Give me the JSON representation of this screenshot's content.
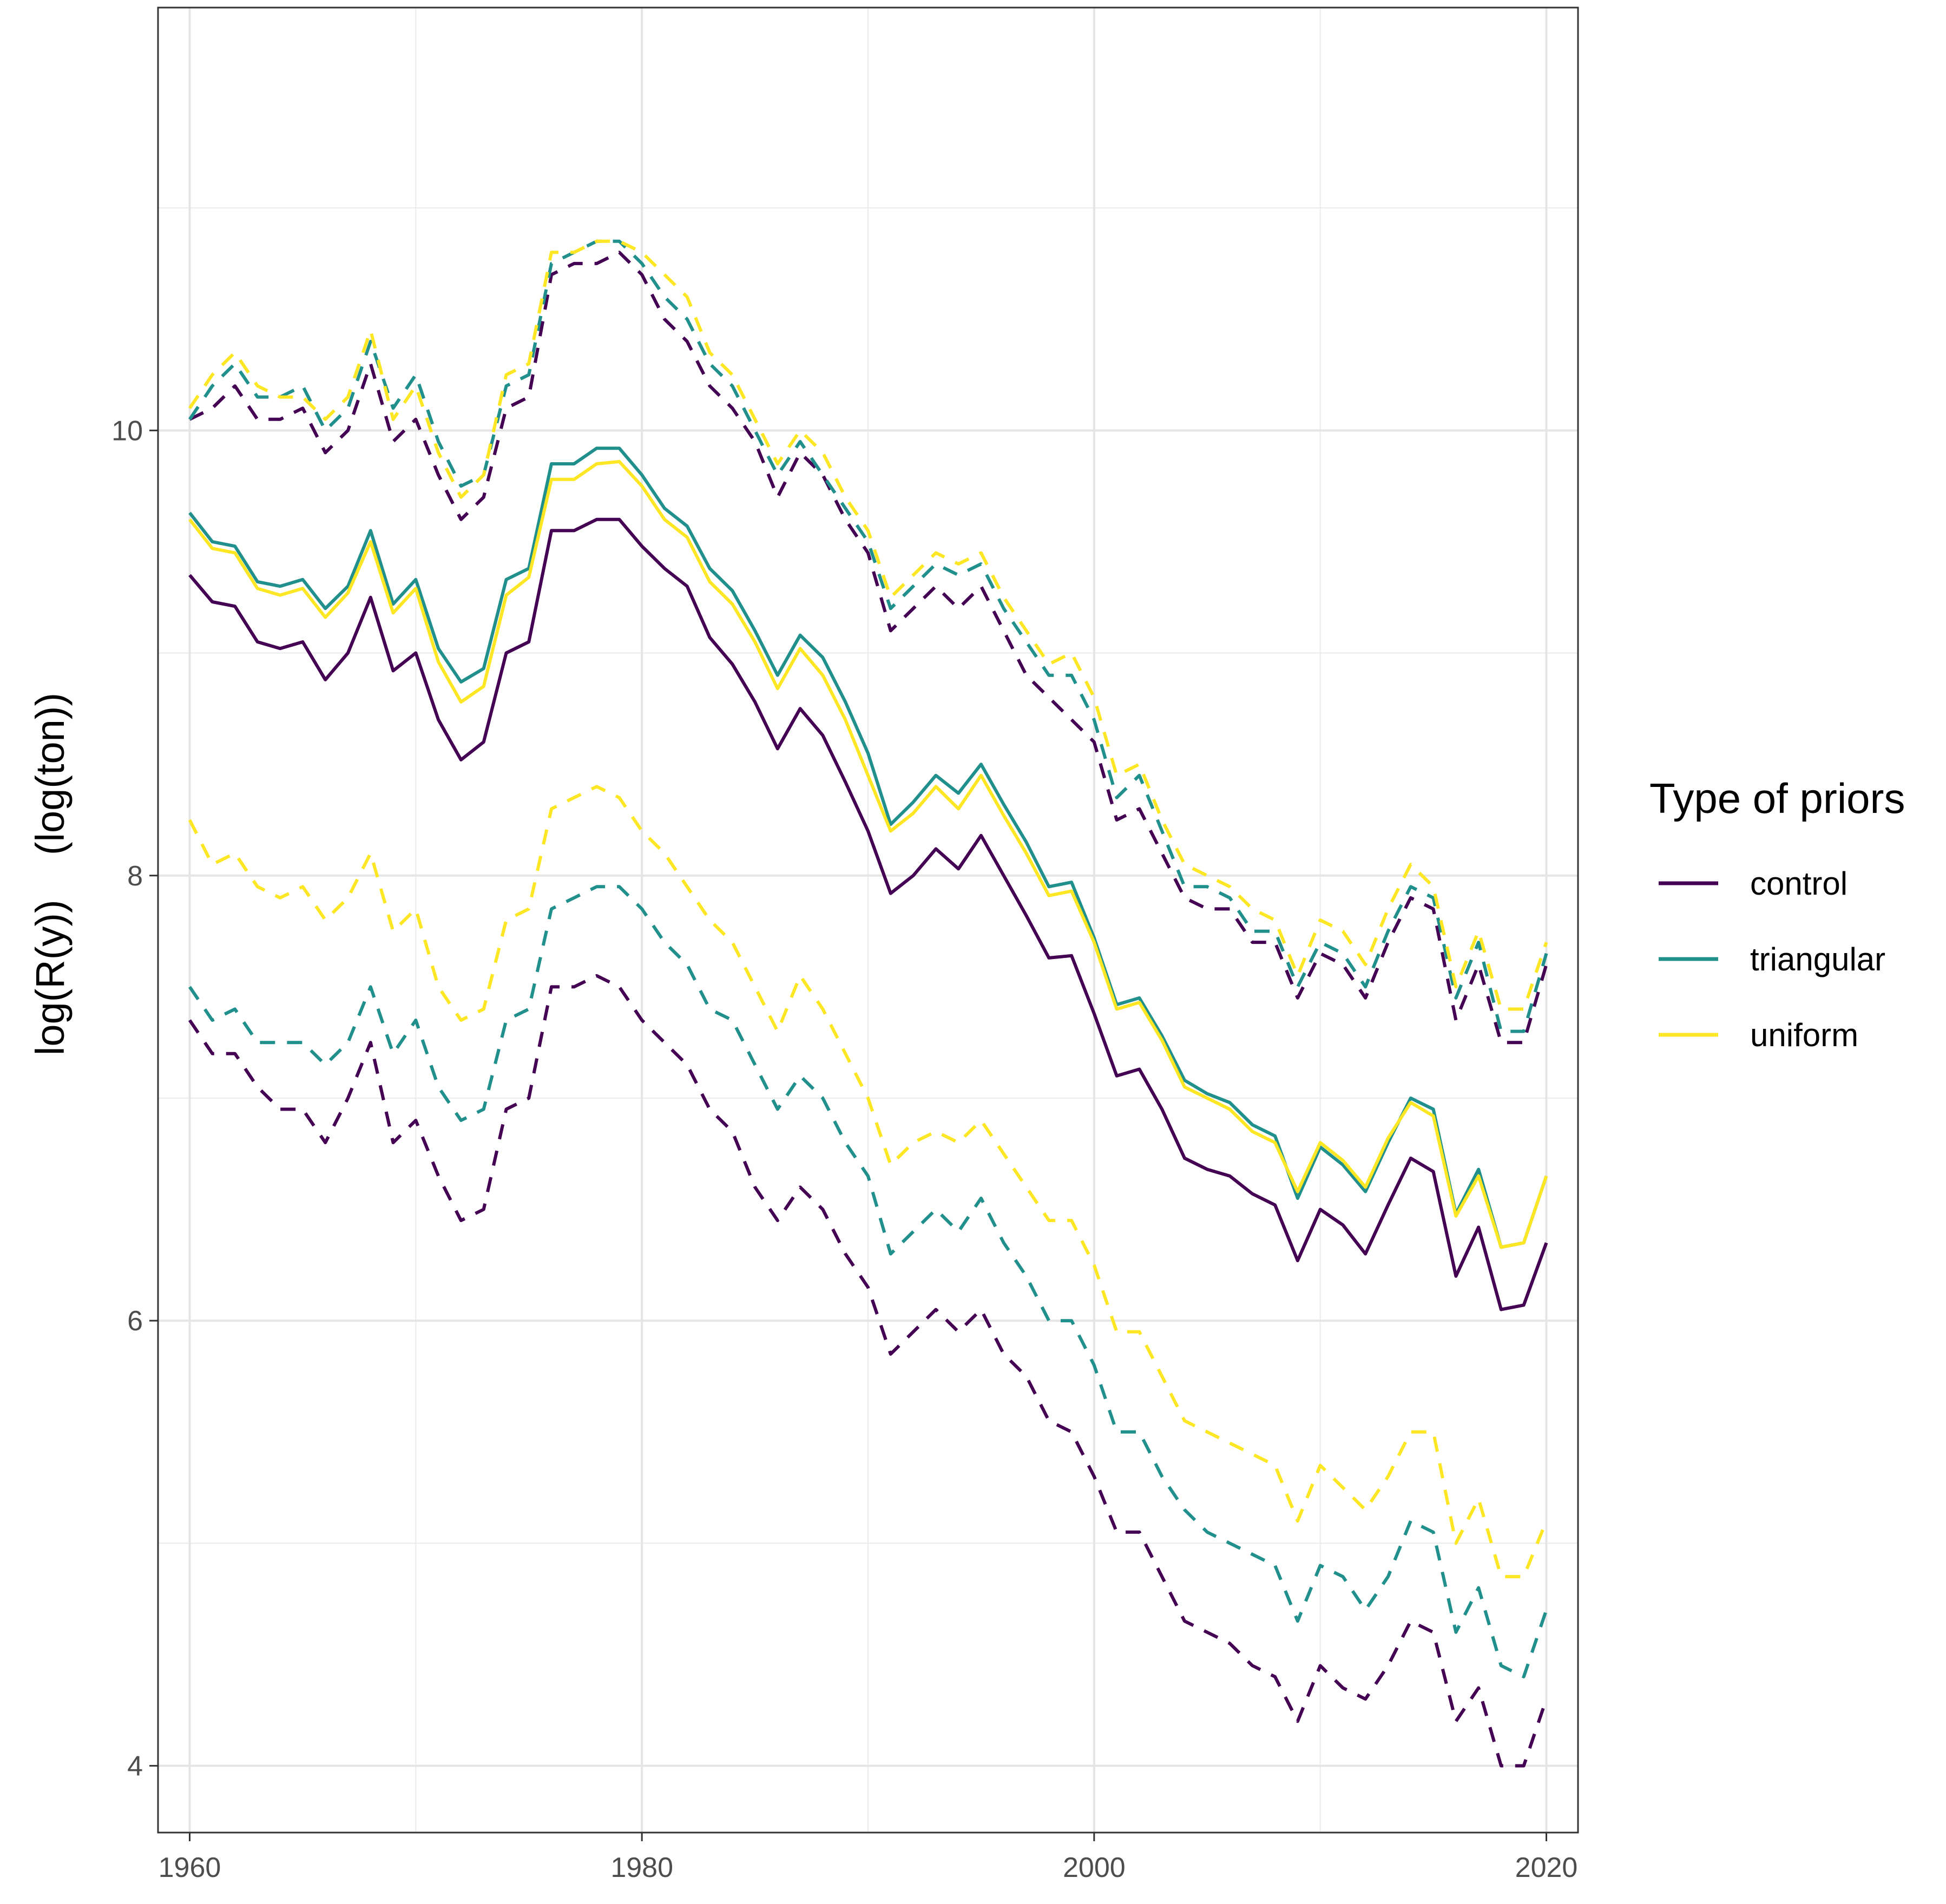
{
  "chart_data": {
    "type": "line",
    "title": "",
    "xlabel": "",
    "ylabel": "log(R(y))    (log(ton))",
    "xlim": [
      1958.6,
      2021.4
    ],
    "ylim": [
      3.7,
      11.9
    ],
    "xticks": [
      1960,
      1980,
      2000,
      2020
    ],
    "xtick_labels": [
      "1960",
      "1980",
      "2000",
      "2020"
    ],
    "yticks": [
      4,
      6,
      8,
      10
    ],
    "ytick_labels": [
      "4",
      "6",
      "8",
      "10"
    ],
    "grid": true,
    "legend": {
      "title": "Type of priors",
      "position": "right",
      "entries": [
        "control",
        "triangular",
        "uniform"
      ]
    },
    "colors": {
      "control": "#440154",
      "triangular": "#21908C",
      "uniform": "#FDE725"
    },
    "x": [
      1960,
      1961,
      1962,
      1963,
      1964,
      1965,
      1966,
      1967,
      1968,
      1969,
      1970,
      1971,
      1972,
      1973,
      1974,
      1975,
      1976,
      1977,
      1978,
      1979,
      1980,
      1981,
      1982,
      1983,
      1984,
      1985,
      1986,
      1987,
      1988,
      1989,
      1990,
      1991,
      1992,
      1993,
      1994,
      1995,
      1996,
      1997,
      1998,
      1999,
      2000,
      2001,
      2002,
      2003,
      2004,
      2005,
      2006,
      2007,
      2008,
      2009,
      2010,
      2011,
      2012,
      2013,
      2014,
      2015,
      2016,
      2017,
      2018,
      2019,
      2020
    ],
    "series": [
      {
        "name": "control",
        "style": "solid",
        "values": [
          9.35,
          9.23,
          9.21,
          9.05,
          9.02,
          9.05,
          8.88,
          9.0,
          9.25,
          8.92,
          9.0,
          8.7,
          8.52,
          8.6,
          9.0,
          9.05,
          9.55,
          9.55,
          9.6,
          9.6,
          9.48,
          9.38,
          9.3,
          9.07,
          8.95,
          8.78,
          8.57,
          8.75,
          8.63,
          8.42,
          8.2,
          7.92,
          8.0,
          8.12,
          8.03,
          8.18,
          8.0,
          7.82,
          7.63,
          7.64,
          7.38,
          7.1,
          7.13,
          6.95,
          6.73,
          6.68,
          6.65,
          6.57,
          6.52,
          6.27,
          6.5,
          6.43,
          6.3,
          6.52,
          6.73,
          6.67,
          6.2,
          6.42,
          6.05,
          6.07,
          6.35
        ]
      },
      {
        "name": "triangular",
        "style": "solid",
        "values": [
          9.63,
          9.5,
          9.48,
          9.32,
          9.3,
          9.33,
          9.2,
          9.3,
          9.55,
          9.22,
          9.33,
          9.02,
          8.87,
          8.93,
          9.33,
          9.38,
          9.85,
          9.85,
          9.92,
          9.92,
          9.8,
          9.65,
          9.57,
          9.38,
          9.28,
          9.1,
          8.9,
          9.08,
          8.98,
          8.78,
          8.55,
          8.23,
          8.33,
          8.45,
          8.37,
          8.5,
          8.32,
          8.15,
          7.95,
          7.97,
          7.72,
          7.42,
          7.45,
          7.28,
          7.08,
          7.02,
          6.98,
          6.88,
          6.83,
          6.55,
          6.78,
          6.7,
          6.58,
          6.8,
          7.0,
          6.95,
          6.48,
          6.68,
          6.33,
          6.35,
          6.65
        ]
      },
      {
        "name": "uniform",
        "style": "solid",
        "values": [
          9.6,
          9.47,
          9.45,
          9.29,
          9.26,
          9.29,
          9.16,
          9.27,
          9.5,
          9.18,
          9.29,
          8.96,
          8.78,
          8.85,
          9.26,
          9.34,
          9.78,
          9.78,
          9.85,
          9.86,
          9.75,
          9.6,
          9.52,
          9.32,
          9.22,
          9.05,
          8.84,
          9.02,
          8.9,
          8.7,
          8.45,
          8.2,
          8.28,
          8.4,
          8.3,
          8.45,
          8.27,
          8.1,
          7.91,
          7.93,
          7.7,
          7.4,
          7.43,
          7.26,
          7.05,
          7.0,
          6.95,
          6.85,
          6.8,
          6.58,
          6.8,
          6.72,
          6.6,
          6.82,
          6.98,
          6.92,
          6.47,
          6.65,
          6.33,
          6.35,
          6.65
        ]
      },
      {
        "name": "control",
        "style": "dashed",
        "values": [
          10.05,
          10.1,
          10.2,
          10.05,
          10.05,
          10.1,
          9.9,
          10.0,
          10.3,
          9.95,
          10.05,
          9.8,
          9.6,
          9.7,
          10.1,
          10.15,
          10.7,
          10.75,
          10.75,
          10.8,
          10.7,
          10.5,
          10.4,
          10.2,
          10.1,
          9.95,
          9.7,
          9.9,
          9.8,
          9.6,
          9.45,
          9.1,
          9.2,
          9.3,
          9.2,
          9.3,
          9.1,
          8.9,
          8.8,
          8.7,
          8.6,
          8.25,
          8.3,
          8.1,
          7.9,
          7.85,
          7.85,
          7.7,
          7.7,
          7.45,
          7.65,
          7.6,
          7.45,
          7.7,
          7.9,
          7.85,
          7.35,
          7.6,
          7.25,
          7.25,
          7.6
        ]
      },
      {
        "name": "triangular",
        "style": "dashed",
        "values": [
          10.05,
          10.2,
          10.3,
          10.15,
          10.15,
          10.2,
          10.0,
          10.1,
          10.4,
          10.1,
          10.25,
          9.95,
          9.75,
          9.8,
          10.2,
          10.25,
          10.75,
          10.8,
          10.85,
          10.85,
          10.75,
          10.6,
          10.5,
          10.3,
          10.2,
          10.0,
          9.8,
          9.95,
          9.8,
          9.65,
          9.5,
          9.2,
          9.3,
          9.4,
          9.35,
          9.4,
          9.2,
          9.05,
          8.9,
          8.9,
          8.7,
          8.35,
          8.45,
          8.2,
          7.95,
          7.95,
          7.9,
          7.75,
          7.75,
          7.5,
          7.7,
          7.65,
          7.5,
          7.75,
          7.95,
          7.9,
          7.45,
          7.7,
          7.3,
          7.3,
          7.65
        ]
      },
      {
        "name": "uniform",
        "style": "dashed",
        "values": [
          10.1,
          10.25,
          10.35,
          10.2,
          10.15,
          10.15,
          10.05,
          10.15,
          10.45,
          10.05,
          10.2,
          9.9,
          9.7,
          9.8,
          10.25,
          10.3,
          10.8,
          10.8,
          10.85,
          10.85,
          10.8,
          10.7,
          10.6,
          10.35,
          10.25,
          10.05,
          9.85,
          10.0,
          9.9,
          9.7,
          9.55,
          9.25,
          9.35,
          9.45,
          9.4,
          9.45,
          9.25,
          9.1,
          8.95,
          9.0,
          8.8,
          8.45,
          8.5,
          8.25,
          8.05,
          8.0,
          7.95,
          7.85,
          7.8,
          7.55,
          7.8,
          7.75,
          7.6,
          7.85,
          8.05,
          7.95,
          7.5,
          7.75,
          7.4,
          7.4,
          7.7
        ]
      },
      {
        "name": "control",
        "style": "dashed",
        "values": [
          7.35,
          7.2,
          7.2,
          7.05,
          6.95,
          6.95,
          6.8,
          7.0,
          7.25,
          6.8,
          6.9,
          6.65,
          6.45,
          6.5,
          6.95,
          7.0,
          7.5,
          7.5,
          7.55,
          7.5,
          7.35,
          7.25,
          7.15,
          6.95,
          6.85,
          6.6,
          6.45,
          6.6,
          6.5,
          6.3,
          6.15,
          5.85,
          5.95,
          6.05,
          5.95,
          6.05,
          5.85,
          5.75,
          5.55,
          5.5,
          5.3,
          5.05,
          5.05,
          4.85,
          4.65,
          4.6,
          4.55,
          4.45,
          4.4,
          4.2,
          4.45,
          4.35,
          4.3,
          4.45,
          4.65,
          4.6,
          4.2,
          4.35,
          4.0,
          4.0,
          4.3
        ]
      },
      {
        "name": "triangular",
        "style": "dashed",
        "values": [
          7.5,
          7.35,
          7.4,
          7.25,
          7.25,
          7.25,
          7.15,
          7.25,
          7.5,
          7.2,
          7.35,
          7.05,
          6.9,
          6.95,
          7.35,
          7.4,
          7.85,
          7.9,
          7.95,
          7.95,
          7.85,
          7.7,
          7.6,
          7.4,
          7.35,
          7.15,
          6.95,
          7.1,
          7.0,
          6.8,
          6.65,
          6.3,
          6.4,
          6.5,
          6.4,
          6.55,
          6.35,
          6.2,
          6.0,
          6.0,
          5.8,
          5.5,
          5.5,
          5.3,
          5.15,
          5.05,
          5.0,
          4.95,
          4.9,
          4.65,
          4.9,
          4.85,
          4.7,
          4.85,
          5.1,
          5.05,
          4.6,
          4.8,
          4.45,
          4.4,
          4.7
        ]
      },
      {
        "name": "uniform",
        "style": "dashed",
        "values": [
          8.25,
          8.05,
          8.1,
          7.95,
          7.9,
          7.95,
          7.8,
          7.9,
          8.1,
          7.75,
          7.85,
          7.5,
          7.35,
          7.4,
          7.8,
          7.85,
          8.3,
          8.35,
          8.4,
          8.35,
          8.2,
          8.1,
          7.95,
          7.8,
          7.7,
          7.5,
          7.3,
          7.55,
          7.4,
          7.2,
          7.0,
          6.7,
          6.8,
          6.85,
          6.8,
          6.9,
          6.75,
          6.6,
          6.45,
          6.45,
          6.25,
          5.95,
          5.95,
          5.75,
          5.55,
          5.5,
          5.45,
          5.4,
          5.35,
          5.1,
          5.35,
          5.25,
          5.15,
          5.3,
          5.5,
          5.5,
          5.0,
          5.2,
          4.85,
          4.85,
          5.1
        ]
      }
    ]
  }
}
